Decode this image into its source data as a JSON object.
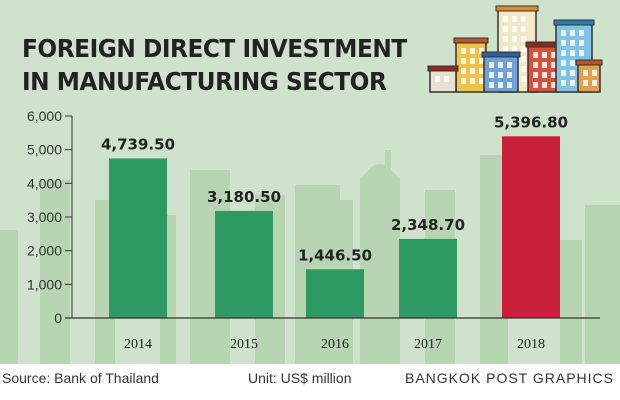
{
  "title_line1": "FOREIGN DIRECT INVESTMENT",
  "title_line2": "IN MANUFACTURING SECTOR",
  "source": "Source: Bank of Thailand",
  "unit": "Unit: US$ million",
  "credit": "BANGKOK POST GRAPHICS",
  "colors": {
    "background": "#cfe2cc",
    "skyline": "#b7d4b3",
    "bar": "#2c9a62",
    "highlight": "#c8203a"
  },
  "chart_data": {
    "type": "bar",
    "categories": [
      "2014",
      "2015",
      "2016",
      "2017",
      "2018"
    ],
    "values": [
      4739.5,
      3180.5,
      1446.5,
      2348.7,
      5396.8
    ],
    "value_labels": [
      "4,739.50",
      "3,180.50",
      "1,446.50",
      "2,348.70",
      "5,396.80"
    ],
    "highlight_index": 4,
    "yticks": [
      "0",
      "1,000",
      "2,000",
      "3,000",
      "4,000",
      "5,000",
      "6,000"
    ],
    "ylim": [
      0,
      6000
    ],
    "grid": false
  }
}
